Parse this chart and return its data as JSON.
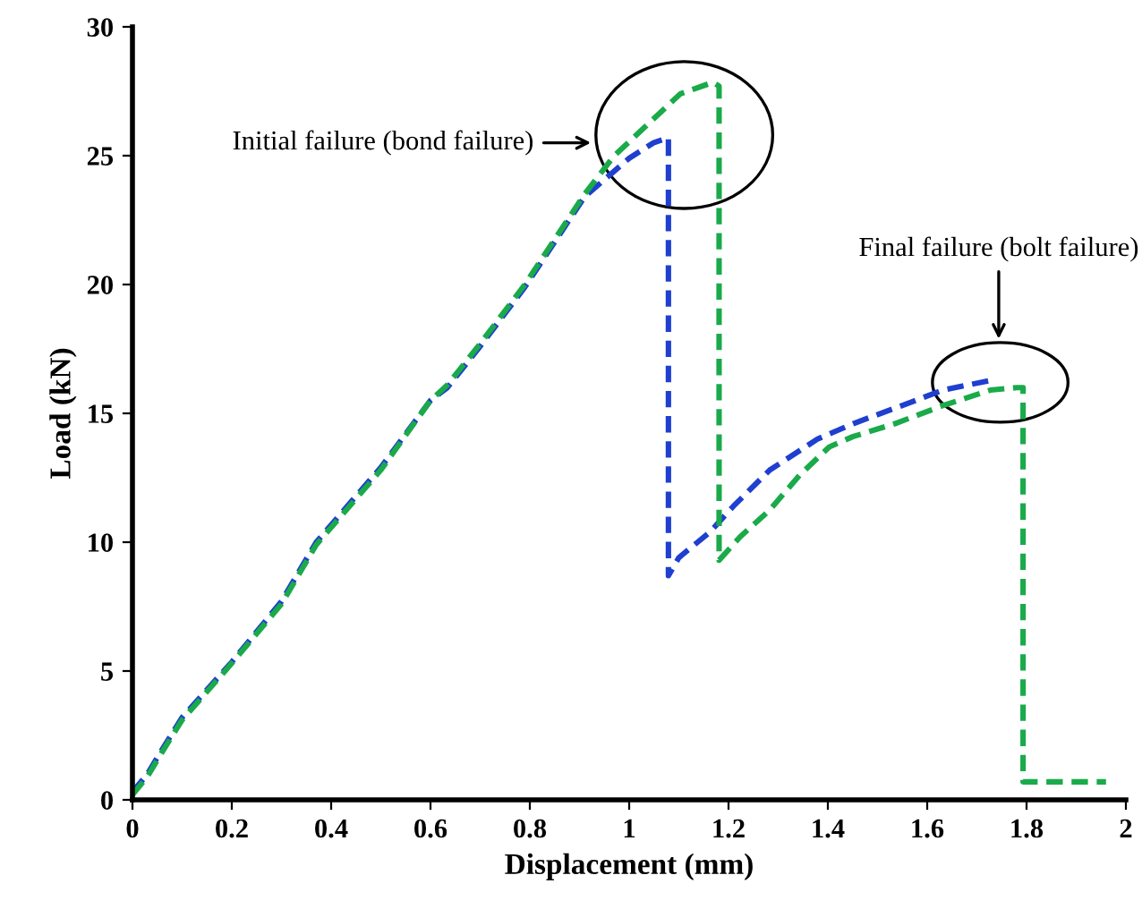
{
  "chart_data": {
    "type": "line",
    "xlabel": "Displacement (mm)",
    "ylabel": "Load (kN)",
    "xlim": [
      0,
      2
    ],
    "xticks": [
      0,
      0.2,
      0.4,
      0.6,
      0.8,
      1,
      1.2,
      1.4,
      1.6,
      1.8,
      2
    ],
    "ylim": [
      0,
      30
    ],
    "yticks": [
      0,
      5,
      10,
      15,
      20,
      25,
      30
    ],
    "grid": false,
    "marker": "none",
    "line_style": "dashed",
    "series": [
      {
        "color": "#1f3fd0",
        "x": [
          0,
          0.03,
          0.058,
          0.1,
          0.2,
          0.3,
          0.37,
          0.5,
          0.6,
          0.634,
          0.7,
          0.79,
          0.91,
          1.0,
          1.049,
          1.079,
          1.079,
          1.1,
          1.163,
          1.21,
          1.283,
          1.379,
          1.451,
          1.535,
          1.631,
          1.733
        ],
        "values": [
          0.3,
          1.0,
          1.9,
          3.2,
          5.35,
          7.7,
          10.0,
          12.9,
          15.5,
          16.0,
          17.6,
          19.9,
          23.4,
          24.9,
          25.5,
          25.7,
          8.7,
          9.4,
          10.4,
          11.4,
          12.8,
          14.0,
          14.6,
          15.2,
          15.9,
          16.3
        ]
      },
      {
        "color": "#1aaa4a",
        "x": [
          0,
          0.03,
          0.058,
          0.1,
          0.2,
          0.3,
          0.37,
          0.5,
          0.6,
          0.634,
          0.7,
          0.79,
          0.91,
          0.97,
          1.031,
          1.103,
          1.169,
          1.181,
          1.181,
          1.223,
          1.283,
          1.343,
          1.403,
          1.451,
          1.535,
          1.631,
          1.727,
          1.781,
          1.793,
          1.793,
          1.96
        ],
        "values": [
          0.2,
          0.9,
          1.8,
          3.1,
          5.3,
          7.6,
          9.9,
          12.8,
          15.5,
          16.1,
          17.7,
          20.0,
          23.5,
          25.0,
          26.1,
          27.4,
          27.85,
          27.7,
          9.3,
          10.2,
          11.25,
          12.6,
          13.7,
          14.1,
          14.6,
          15.3,
          15.9,
          16.0,
          16.0,
          0.7,
          0.7
        ]
      }
    ],
    "annotations": [
      "Initial failure (bond failure)",
      "Final failure (bolt failure)"
    ]
  }
}
